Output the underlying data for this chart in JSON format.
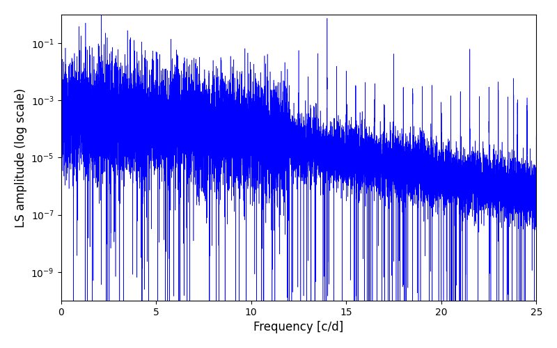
{
  "title": "",
  "xlabel": "Frequency [c/d]",
  "ylabel": "LS amplitude (log scale)",
  "xlim": [
    0,
    25
  ],
  "ylim": [
    1e-10,
    1.0
  ],
  "line_color": "#0000ff",
  "background_color": "#ffffff",
  "figsize": [
    8.0,
    5.0
  ],
  "dpi": 100,
  "yticks": [
    1e-09,
    1e-07,
    1e-05,
    0.001,
    0.1
  ]
}
